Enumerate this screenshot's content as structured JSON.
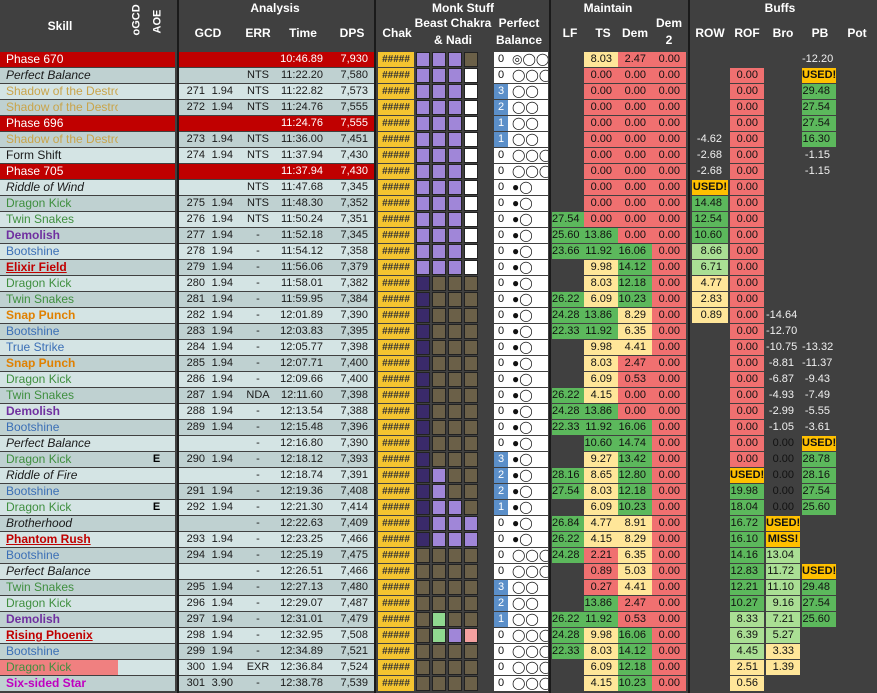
{
  "colors": {
    "bg": "#404040",
    "rowA": "#d4e4e4",
    "rowB": "#bfd1d1",
    "phase": "#c00000",
    "chak": "#f4c430",
    "purple": "#a086d8",
    "olive": "#6b6048",
    "blue": "#5b8fc9",
    "green": "#5cb85c",
    "lgreen": "#aadf94",
    "yellow": "#ffe699",
    "red": "#f07070",
    "orange": "#ffc000"
  },
  "headers": {
    "skill": "Skill",
    "ogcd": "oGCD",
    "aoe": "AOE",
    "analysis": "Analysis",
    "gcd": "GCD",
    "err": "ERR",
    "time": "Time",
    "dps": "DPS",
    "monk": "Monk Stuff",
    "chak": "Chak",
    "beast": "Beast Chakra",
    "nadi": "& Nadi",
    "perfect": "Perfect",
    "balance": "Balance",
    "maintain": "Maintain",
    "lf": "LF",
    "ts": "TS",
    "dem": "Dem",
    "dem2a": "Dem",
    "dem2b": "2",
    "buffs": "Buffs",
    "row": "ROW",
    "rof": "ROF",
    "bro": "Bro",
    "pb": "PB",
    "pot": "Pot"
  },
  "rows": [
    {
      "skill": "Phase 670",
      "style": "phase",
      "aoe": "",
      "n": "",
      "g": "",
      "err": "",
      "time": "10:46.89",
      "dps": "7,930",
      "chak": "#####",
      "beast": "pppo",
      "pbnum": "0",
      "pbdots": "◎◯◯",
      "lf": "",
      "ts": "8.03",
      "dem": "2.47",
      "dem2": "0.00",
      "row": "",
      "rof": "",
      "bro": "",
      "pb": "-12.20",
      "pot": ""
    },
    {
      "skill": "Perfect Balance",
      "style": "italic",
      "aoe": "",
      "n": "",
      "g": "",
      "err": "NTS",
      "time": "11:22.20",
      "dps": "7,580",
      "chak": "#####",
      "beast": "pppw",
      "pbnum": "0",
      "pbdots": "◯◯◯",
      "lf": "",
      "ts": "0.00",
      "dem": "0.00",
      "dem2": "0.00",
      "row": "",
      "rof": "0.00",
      "bro": "",
      "pb": "USED!",
      "pot": ""
    },
    {
      "skill": "Shadow of the Destroyer",
      "style": "aoe",
      "aoe": "",
      "n": "271",
      "g": "1.94",
      "err": "NTS",
      "time": "11:22.82",
      "dps": "7,573",
      "chak": "#####",
      "beast": "pppw",
      "pbnum": "3",
      "pbdots": "◯◯",
      "lf": "",
      "ts": "0.00",
      "dem": "0.00",
      "dem2": "0.00",
      "row": "",
      "rof": "0.00",
      "bro": "",
      "pb": "29.48",
      "pot": ""
    },
    {
      "skill": "Shadow of the Destroyer",
      "style": "aoe",
      "aoe": "",
      "n": "272",
      "g": "1.94",
      "err": "NTS",
      "time": "11:24.76",
      "dps": "7,555",
      "chak": "#####",
      "beast": "pppw",
      "pbnum": "2",
      "pbdots": "◯◯",
      "lf": "",
      "ts": "0.00",
      "dem": "0.00",
      "dem2": "0.00",
      "row": "",
      "rof": "0.00",
      "bro": "",
      "pb": "27.54",
      "pot": ""
    },
    {
      "skill": "Phase 696",
      "style": "phase",
      "aoe": "",
      "n": "",
      "g": "",
      "err": "",
      "time": "11:24.76",
      "dps": "7,555",
      "chak": "#####",
      "beast": "pppw",
      "pbnum": "1",
      "pbdots": "◯◯",
      "lf": "",
      "ts": "0.00",
      "dem": "0.00",
      "dem2": "0.00",
      "row": "",
      "rof": "0.00",
      "bro": "",
      "pb": "27.54",
      "pot": ""
    },
    {
      "skill": "Shadow of the Destroyer",
      "style": "aoe",
      "aoe": "",
      "n": "273",
      "g": "1.94",
      "err": "NTS",
      "time": "11:36.00",
      "dps": "7,451",
      "chak": "#####",
      "beast": "pppw",
      "pbnum": "1",
      "pbdots": "◯◯",
      "lf": "",
      "ts": "0.00",
      "dem": "0.00",
      "dem2": "0.00",
      "row": "-4.62",
      "rof": "0.00",
      "bro": "",
      "pb": "16.30",
      "pot": ""
    },
    {
      "skill": "Form Shift",
      "style": "plain",
      "aoe": "",
      "n": "274",
      "g": "1.94",
      "err": "NTS",
      "time": "11:37.94",
      "dps": "7,430",
      "chak": "#####",
      "beast": "pppw",
      "pbnum": "0",
      "pbdots": "◯◯◯",
      "lf": "",
      "ts": "0.00",
      "dem": "0.00",
      "dem2": "0.00",
      "row": "-2.68",
      "rof": "0.00",
      "bro": "",
      "pb": "-1.15",
      "pot": ""
    },
    {
      "skill": "Phase 705",
      "style": "phase",
      "aoe": "",
      "n": "",
      "g": "",
      "err": "",
      "time": "11:37.94",
      "dps": "7,430",
      "chak": "#####",
      "beast": "pppw",
      "pbnum": "0",
      "pbdots": "◯◯◯",
      "lf": "",
      "ts": "0.00",
      "dem": "0.00",
      "dem2": "0.00",
      "row": "-2.68",
      "rof": "0.00",
      "bro": "",
      "pb": "-1.15",
      "pot": ""
    },
    {
      "skill": "Riddle of Wind",
      "style": "italic",
      "aoe": "",
      "n": "",
      "g": "",
      "err": "NTS",
      "time": "11:47.68",
      "dps": "7,345",
      "chak": "#####",
      "beast": "pppw",
      "pbnum": "0",
      "pbdots": "●◯",
      "lf": "",
      "ts": "0.00",
      "dem": "0.00",
      "dem2": "0.00",
      "row": "USED!",
      "rof": "0.00",
      "bro": "",
      "pb": "",
      "pot": ""
    },
    {
      "skill": "Dragon Kick",
      "style": "green",
      "aoe": "",
      "n": "275",
      "g": "1.94",
      "err": "NTS",
      "time": "11:48.30",
      "dps": "7,352",
      "chak": "#####",
      "beast": "pppw",
      "pbnum": "0",
      "pbdots": "●◯",
      "lf": "",
      "ts": "0.00",
      "dem": "0.00",
      "dem2": "0.00",
      "row": "14.48",
      "rof": "0.00",
      "bro": "",
      "pb": "",
      "pot": ""
    },
    {
      "skill": "Twin Snakes",
      "style": "green",
      "aoe": "",
      "n": "276",
      "g": "1.94",
      "err": "NTS",
      "time": "11:50.24",
      "dps": "7,351",
      "chak": "#####",
      "beast": "pppw",
      "pbnum": "0",
      "pbdots": "●◯",
      "lf": "27.54",
      "ts": "0.00",
      "dem": "0.00",
      "dem2": "0.00",
      "row": "12.54",
      "rof": "0.00",
      "bro": "",
      "pb": "",
      "pot": ""
    },
    {
      "skill": "Demolish",
      "style": "demolish",
      "aoe": "",
      "n": "277",
      "g": "1.94",
      "err": "-",
      "time": "11:52.18",
      "dps": "7,345",
      "chak": "#####",
      "beast": "pppw",
      "pbnum": "0",
      "pbdots": "●◯",
      "lf": "25.60",
      "ts": "13.86",
      "dem": "0.00",
      "dem2": "0.00",
      "row": "10.60",
      "rof": "0.00",
      "bro": "",
      "pb": "",
      "pot": ""
    },
    {
      "skill": "Bootshine",
      "style": "blue",
      "aoe": "",
      "n": "278",
      "g": "1.94",
      "err": "-",
      "time": "11:54.12",
      "dps": "7,358",
      "chak": "#####",
      "beast": "pppw",
      "pbnum": "0",
      "pbdots": "●◯",
      "lf": "23.66",
      "ts": "11.92",
      "dem": "16.06",
      "dem2": "0.00",
      "row": "8.66",
      "rof": "0.00",
      "bro": "",
      "pb": "",
      "pot": ""
    },
    {
      "skill": "Elixir Field",
      "style": "elixir",
      "aoe": "",
      "n": "279",
      "g": "1.94",
      "err": "-",
      "time": "11:56.06",
      "dps": "7,379",
      "chak": "#####",
      "beast": "pppw",
      "pbnum": "0",
      "pbdots": "●◯",
      "lf": "",
      "ts": "9.98",
      "dem": "14.12",
      "dem2": "0.00",
      "row": "6.71",
      "rof": "0.00",
      "bro": "",
      "pb": "",
      "pot": ""
    },
    {
      "skill": "Dragon Kick",
      "style": "green",
      "aoe": "",
      "n": "280",
      "g": "1.94",
      "err": "-",
      "time": "11:58.01",
      "dps": "7,382",
      "chak": "#####",
      "beast": "vooo",
      "pbnum": "0",
      "pbdots": "●◯",
      "lf": "",
      "ts": "8.03",
      "dem": "12.18",
      "dem2": "0.00",
      "row": "4.77",
      "rof": "0.00",
      "bro": "",
      "pb": "",
      "pot": ""
    },
    {
      "skill": "Twin Snakes",
      "style": "green",
      "aoe": "",
      "n": "281",
      "g": "1.94",
      "err": "-",
      "time": "11:59.95",
      "dps": "7,384",
      "chak": "#####",
      "beast": "vooo",
      "pbnum": "0",
      "pbdots": "●◯",
      "lf": "26.22",
      "ts": "6.09",
      "dem": "10.23",
      "dem2": "0.00",
      "row": "2.83",
      "rof": "0.00",
      "bro": "",
      "pb": "",
      "pot": ""
    },
    {
      "skill": "Snap Punch",
      "style": "snap",
      "aoe": "",
      "n": "282",
      "g": "1.94",
      "err": "-",
      "time": "12:01.89",
      "dps": "7,390",
      "chak": "#####",
      "beast": "vooo",
      "pbnum": "0",
      "pbdots": "●◯",
      "lf": "24.28",
      "ts": "13.86",
      "dem": "8.29",
      "dem2": "0.00",
      "row": "0.89",
      "rof": "0.00",
      "bro": "-14.64",
      "pb": "",
      "pot": ""
    },
    {
      "skill": "Bootshine",
      "style": "blue",
      "aoe": "",
      "n": "283",
      "g": "1.94",
      "err": "-",
      "time": "12:03.83",
      "dps": "7,395",
      "chak": "#####",
      "beast": "vooo",
      "pbnum": "0",
      "pbdots": "●◯",
      "lf": "22.33",
      "ts": "11.92",
      "dem": "6.35",
      "dem2": "0.00",
      "row": "",
      "rof": "0.00",
      "bro": "-12.70",
      "pb": "",
      "pot": ""
    },
    {
      "skill": "True Strike",
      "style": "blue",
      "aoe": "",
      "n": "284",
      "g": "1.94",
      "err": "-",
      "time": "12:05.77",
      "dps": "7,398",
      "chak": "#####",
      "beast": "vooo",
      "pbnum": "0",
      "pbdots": "●◯",
      "lf": "",
      "ts": "9.98",
      "dem": "4.41",
      "dem2": "0.00",
      "row": "",
      "rof": "0.00",
      "bro": "-10.75",
      "pb": "-13.32",
      "pot": ""
    },
    {
      "skill": "Snap Punch",
      "style": "snap",
      "aoe": "",
      "n": "285",
      "g": "1.94",
      "err": "-",
      "time": "12:07.71",
      "dps": "7,400",
      "chak": "#####",
      "beast": "vooo",
      "pbnum": "0",
      "pbdots": "●◯",
      "lf": "",
      "ts": "8.03",
      "dem": "2.47",
      "dem2": "0.00",
      "row": "",
      "rof": "0.00",
      "bro": "-8.81",
      "pb": "-11.37",
      "pot": ""
    },
    {
      "skill": "Dragon Kick",
      "style": "green",
      "aoe": "",
      "n": "286",
      "g": "1.94",
      "err": "-",
      "time": "12:09.66",
      "dps": "7,400",
      "chak": "#####",
      "beast": "vooo",
      "pbnum": "0",
      "pbdots": "●◯",
      "lf": "",
      "ts": "6.09",
      "dem": "0.53",
      "dem2": "0.00",
      "row": "",
      "rof": "0.00",
      "bro": "-6.87",
      "pb": "-9.43",
      "pot": ""
    },
    {
      "skill": "Twin Snakes",
      "style": "green",
      "aoe": "",
      "n": "287",
      "g": "1.94",
      "err": "NDA",
      "time": "12:11.60",
      "dps": "7,398",
      "chak": "#####",
      "beast": "vooo",
      "pbnum": "0",
      "pbdots": "●◯",
      "lf": "26.22",
      "ts": "4.15",
      "dem": "0.00",
      "dem2": "0.00",
      "row": "",
      "rof": "0.00",
      "bro": "-4.93",
      "pb": "-7.49",
      "pot": ""
    },
    {
      "skill": "Demolish",
      "style": "demolish",
      "aoe": "",
      "n": "288",
      "g": "1.94",
      "err": "-",
      "time": "12:13.54",
      "dps": "7,388",
      "chak": "#####",
      "beast": "vooo",
      "pbnum": "0",
      "pbdots": "●◯",
      "lf": "24.28",
      "ts": "13.86",
      "dem": "0.00",
      "dem2": "0.00",
      "row": "",
      "rof": "0.00",
      "bro": "-2.99",
      "pb": "-5.55",
      "pot": ""
    },
    {
      "skill": "Bootshine",
      "style": "blue",
      "aoe": "",
      "n": "289",
      "g": "1.94",
      "err": "-",
      "time": "12:15.48",
      "dps": "7,396",
      "chak": "#####",
      "beast": "vooo",
      "pbnum": "0",
      "pbdots": "●◯",
      "lf": "22.33",
      "ts": "11.92",
      "dem": "16.06",
      "dem2": "0.00",
      "row": "",
      "rof": "0.00",
      "bro": "-1.05",
      "pb": "-3.61",
      "pot": ""
    },
    {
      "skill": "Perfect Balance",
      "style": "italic",
      "aoe": "",
      "n": "",
      "g": "",
      "err": "-",
      "time": "12:16.80",
      "dps": "7,390",
      "chak": "#####",
      "beast": "vooo",
      "pbnum": "0",
      "pbdots": "●◯",
      "lf": "",
      "ts": "10.60",
      "dem": "14.74",
      "dem2": "0.00",
      "row": "",
      "rof": "0.00",
      "bro": "0.00",
      "pb": "USED!",
      "pot": ""
    },
    {
      "skill": "Dragon Kick",
      "style": "green",
      "aoe": "E",
      "n": "290",
      "g": "1.94",
      "err": "-",
      "time": "12:18.12",
      "dps": "7,393",
      "chak": "#####",
      "beast": "vooo",
      "pbnum": "3",
      "pbdots": "●◯",
      "lf": "",
      "ts": "9.27",
      "dem": "13.42",
      "dem2": "0.00",
      "row": "",
      "rof": "0.00",
      "bro": "0.00",
      "pb": "28.78",
      "pot": ""
    },
    {
      "skill": "Riddle of Fire",
      "style": "italic",
      "aoe": "",
      "n": "",
      "g": "",
      "err": "-",
      "time": "12:18.74",
      "dps": "7,391",
      "chak": "#####",
      "beast": "vpoo",
      "pbnum": "2",
      "pbdots": "●◯",
      "lf": "28.16",
      "ts": "8.65",
      "dem": "12.80",
      "dem2": "0.00",
      "row": "",
      "rof": "USED!",
      "bro": "0.00",
      "pb": "28.16",
      "pot": ""
    },
    {
      "skill": "Bootshine",
      "style": "blue",
      "aoe": "",
      "n": "291",
      "g": "1.94",
      "err": "-",
      "time": "12:19.36",
      "dps": "7,408",
      "chak": "#####",
      "beast": "vpoo",
      "pbnum": "2",
      "pbdots": "●◯",
      "lf": "27.54",
      "ts": "8.03",
      "dem": "12.18",
      "dem2": "0.00",
      "row": "",
      "rof": "19.98",
      "bro": "0.00",
      "pb": "27.54",
      "pot": ""
    },
    {
      "skill": "Dragon Kick",
      "style": "green",
      "aoe": "E",
      "n": "292",
      "g": "1.94",
      "err": "-",
      "time": "12:21.30",
      "dps": "7,414",
      "chak": "#####",
      "beast": "vppo",
      "pbnum": "1",
      "pbdots": "●◯",
      "lf": "",
      "ts": "6.09",
      "dem": "10.23",
      "dem2": "0.00",
      "row": "",
      "rof": "18.04",
      "bro": "0.00",
      "pb": "25.60",
      "pot": ""
    },
    {
      "skill": "Brotherhood",
      "style": "italic",
      "aoe": "",
      "n": "",
      "g": "",
      "err": "-",
      "time": "12:22.63",
      "dps": "7,409",
      "chak": "#####",
      "beast": "vppp",
      "pbnum": "0",
      "pbdots": "●◯",
      "lf": "26.84",
      "ts": "4.77",
      "dem": "8.91",
      "dem2": "0.00",
      "row": "",
      "rof": "16.72",
      "bro": "USED!",
      "pb": "",
      "pot": ""
    },
    {
      "skill": "Phantom Rush",
      "style": "phantom",
      "aoe": "",
      "n": "293",
      "g": "1.94",
      "err": "-",
      "time": "12:23.25",
      "dps": "7,466",
      "chak": "#####",
      "beast": "vppp",
      "pbnum": "0",
      "pbdots": "●◯",
      "lf": "26.22",
      "ts": "4.15",
      "dem": "8.29",
      "dem2": "0.00",
      "row": "",
      "rof": "16.10",
      "bro": "MISS!",
      "pb": "",
      "pot": ""
    },
    {
      "skill": "Bootshine",
      "style": "blue",
      "aoe": "",
      "n": "294",
      "g": "1.94",
      "err": "-",
      "time": "12:25.19",
      "dps": "7,475",
      "chak": "#####",
      "beast": "oooo",
      "pbnum": "0",
      "pbdots": "◯◯◯",
      "lf": "24.28",
      "ts": "2.21",
      "dem": "6.35",
      "dem2": "0.00",
      "row": "",
      "rof": "14.16",
      "bro": "13.04",
      "pb": "",
      "pot": ""
    },
    {
      "skill": "Perfect Balance",
      "style": "italic",
      "aoe": "",
      "n": "",
      "g": "",
      "err": "-",
      "time": "12:26.51",
      "dps": "7,466",
      "chak": "#####",
      "beast": "oooo",
      "pbnum": "0",
      "pbdots": "◯◯◯",
      "lf": "",
      "ts": "0.89",
      "dem": "5.03",
      "dem2": "0.00",
      "row": "",
      "rof": "12.83",
      "bro": "11.72",
      "pb": "USED!",
      "pot": ""
    },
    {
      "skill": "Twin Snakes",
      "style": "green",
      "aoe": "",
      "n": "295",
      "g": "1.94",
      "err": "-",
      "time": "12:27.13",
      "dps": "7,480",
      "chak": "#####",
      "beast": "oooo",
      "pbnum": "3",
      "pbdots": "◯◯",
      "lf": "",
      "ts": "0.27",
      "dem": "4.41",
      "dem2": "0.00",
      "row": "",
      "rof": "12.21",
      "bro": "11.10",
      "pb": "29.48",
      "pot": ""
    },
    {
      "skill": "Dragon Kick",
      "style": "green",
      "aoe": "",
      "n": "296",
      "g": "1.94",
      "err": "-",
      "time": "12:29.07",
      "dps": "7,487",
      "chak": "#####",
      "beast": "oooo",
      "pbnum": "2",
      "pbdots": "◯◯",
      "lf": "",
      "ts": "13.86",
      "dem": "2.47",
      "dem2": "0.00",
      "row": "",
      "rof": "10.27",
      "bro": "9.16",
      "pb": "27.54",
      "pot": ""
    },
    {
      "skill": "Demolish",
      "style": "demolish",
      "aoe": "",
      "n": "297",
      "g": "1.94",
      "err": "-",
      "time": "12:31.01",
      "dps": "7,479",
      "chak": "#####",
      "beast": "ogoo",
      "pbnum": "1",
      "pbdots": "◯◯",
      "lf": "26.22",
      "ts": "11.92",
      "dem": "0.53",
      "dem2": "0.00",
      "row": "",
      "rof": "8.33",
      "bro": "7.21",
      "pb": "25.60",
      "pot": ""
    },
    {
      "skill": "Rising Phoenix",
      "style": "rising",
      "aoe": "",
      "n": "298",
      "g": "1.94",
      "err": "-",
      "time": "12:32.95",
      "dps": "7,508",
      "chak": "#####",
      "beast": "ogpr",
      "pbnum": "0",
      "pbdots": "◯◯◯",
      "lf": "24.28",
      "ts": "9.98",
      "dem": "16.06",
      "dem2": "0.00",
      "row": "",
      "rof": "6.39",
      "bro": "5.27",
      "pb": "",
      "pot": ""
    },
    {
      "skill": "Bootshine",
      "style": "blue",
      "aoe": "",
      "n": "299",
      "g": "1.94",
      "err": "-",
      "time": "12:34.89",
      "dps": "7,521",
      "chak": "#####",
      "beast": "oooo",
      "pbnum": "0",
      "pbdots": "◯◯◯",
      "lf": "22.33",
      "ts": "8.03",
      "dem": "14.12",
      "dem2": "0.00",
      "row": "",
      "rof": "4.45",
      "bro": "3.33",
      "pb": "",
      "pot": ""
    },
    {
      "skill": "Dragon Kick",
      "style": "dkred",
      "aoe": "",
      "n": "300",
      "g": "1.94",
      "err": "EXR",
      "time": "12:36.84",
      "dps": "7,524",
      "chak": "#####",
      "beast": "oooo",
      "pbnum": "0",
      "pbdots": "◯◯◯",
      "lf": "",
      "ts": "6.09",
      "dem": "12.18",
      "dem2": "0.00",
      "row": "",
      "rof": "2.51",
      "bro": "1.39",
      "pb": "",
      "pot": ""
    },
    {
      "skill": "Six-sided Star",
      "style": "sixsided",
      "aoe": "",
      "n": "301",
      "g": "3.90",
      "err": "-",
      "time": "12:38.78",
      "dps": "7,539",
      "chak": "#####",
      "beast": "oooo",
      "pbnum": "0",
      "pbdots": "◯◯◯",
      "lf": "",
      "ts": "4.15",
      "dem": "10.23",
      "dem2": "0.00",
      "row": "",
      "rof": "0.56",
      "bro": "",
      "pb": "",
      "pot": ""
    }
  ]
}
